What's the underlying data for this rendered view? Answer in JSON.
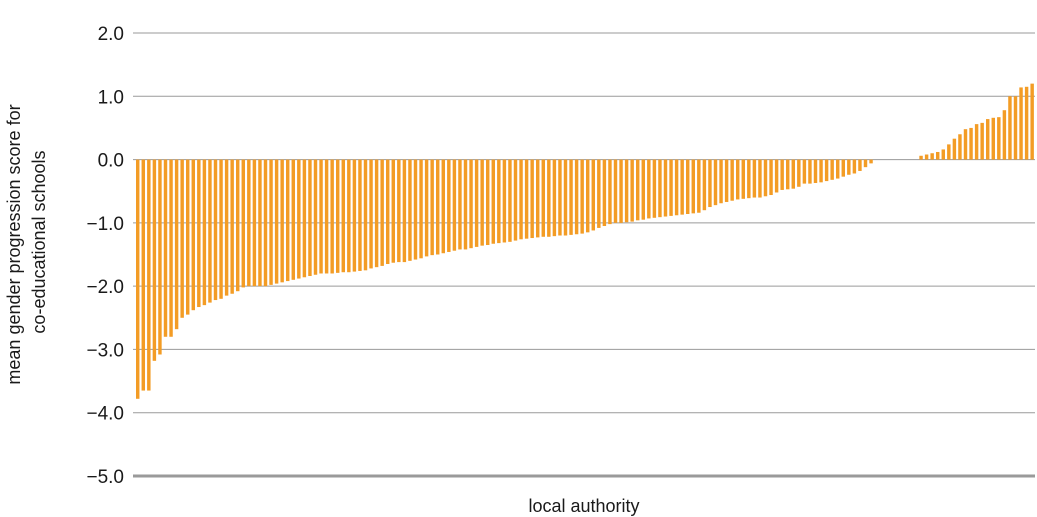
{
  "chart_data": {
    "type": "bar",
    "xlabel": "local authority",
    "ylabel_lines": [
      "mean gender progression score for",
      "co-educational schools"
    ],
    "ylim": [
      -5.0,
      2.0
    ],
    "yticks": [
      {
        "value": 2.0,
        "label": "2.0"
      },
      {
        "value": 1.0,
        "label": "1.0"
      },
      {
        "value": 0.0,
        "label": "0.0"
      },
      {
        "value": -1.0,
        "label": "−1.0"
      },
      {
        "value": -2.0,
        "label": "−2.0"
      },
      {
        "value": -3.0,
        "label": "−3.0"
      },
      {
        "value": -4.0,
        "label": "−4.0"
      },
      {
        "value": -5.0,
        "label": "−5.0"
      }
    ],
    "grid": true,
    "bar_color": "#f39c25",
    "grid_color": "#9a9a9a",
    "values": [
      -3.78,
      -3.65,
      -3.65,
      -3.18,
      -3.08,
      -2.8,
      -2.8,
      -2.68,
      -2.5,
      -2.45,
      -2.38,
      -2.33,
      -2.3,
      -2.26,
      -2.22,
      -2.2,
      -2.15,
      -2.12,
      -2.08,
      -2.02,
      -2.0,
      -2.0,
      -2.0,
      -2.0,
      -1.98,
      -1.96,
      -1.94,
      -1.92,
      -1.9,
      -1.88,
      -1.86,
      -1.84,
      -1.82,
      -1.8,
      -1.8,
      -1.8,
      -1.79,
      -1.78,
      -1.78,
      -1.77,
      -1.76,
      -1.75,
      -1.72,
      -1.7,
      -1.68,
      -1.65,
      -1.63,
      -1.62,
      -1.62,
      -1.6,
      -1.58,
      -1.56,
      -1.53,
      -1.51,
      -1.5,
      -1.48,
      -1.46,
      -1.44,
      -1.42,
      -1.42,
      -1.4,
      -1.38,
      -1.36,
      -1.35,
      -1.33,
      -1.32,
      -1.31,
      -1.3,
      -1.28,
      -1.26,
      -1.25,
      -1.24,
      -1.23,
      -1.22,
      -1.22,
      -1.21,
      -1.2,
      -1.2,
      -1.19,
      -1.18,
      -1.17,
      -1.15,
      -1.12,
      -1.08,
      -1.05,
      -1.02,
      -1.0,
      -1.0,
      -0.99,
      -0.98,
      -0.96,
      -0.95,
      -0.93,
      -0.92,
      -0.91,
      -0.9,
      -0.89,
      -0.88,
      -0.87,
      -0.86,
      -0.85,
      -0.84,
      -0.8,
      -0.75,
      -0.72,
      -0.69,
      -0.67,
      -0.65,
      -0.63,
      -0.62,
      -0.61,
      -0.6,
      -0.6,
      -0.58,
      -0.56,
      -0.52,
      -0.48,
      -0.47,
      -0.46,
      -0.43,
      -0.38,
      -0.38,
      -0.37,
      -0.36,
      -0.34,
      -0.32,
      -0.3,
      -0.27,
      -0.24,
      -0.22,
      -0.18,
      -0.12,
      -0.06,
      0.0,
      0.0,
      0.0,
      0.0,
      0.0,
      0.0,
      0.0,
      0.0,
      0.06,
      0.08,
      0.1,
      0.12,
      0.16,
      0.24,
      0.33,
      0.4,
      0.48,
      0.5,
      0.56,
      0.58,
      0.64,
      0.66,
      0.67,
      0.78,
      1.0,
      1.0,
      1.14,
      1.15,
      1.2
    ]
  }
}
